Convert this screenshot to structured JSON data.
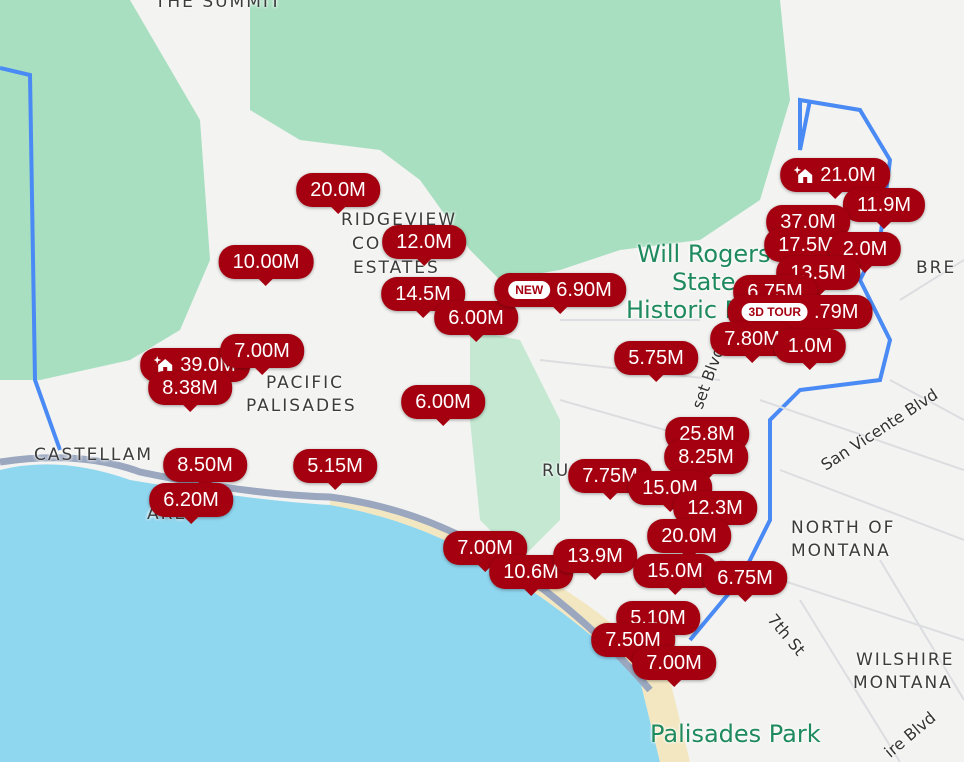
{
  "map": {
    "colors": {
      "water": "#8fd6ef",
      "park": "#a8dfc0",
      "land": "#f3f3f1",
      "boundary": "#4a8af4",
      "marker": "#a50010"
    },
    "place_labels": [
      "THE SUMMIT",
      "RIDGEVIEW",
      "CO",
      "ESTATES",
      "PACIFIC",
      "PALISADES",
      "CASTELLAM",
      "ARE",
      "RU",
      "BRE",
      "NORTH OF",
      "MONTANA",
      "WILSHIRE",
      "MONTANA",
      "PALISADES"
    ],
    "park_labels": [
      "Will Rogers",
      "State",
      "Historic P",
      "Palisades Park"
    ],
    "road_labels": [
      "San Vicente Blvd",
      "set Blvd",
      "7th St",
      "ire Blvd"
    ]
  },
  "markers": [
    {
      "price": "20.0M"
    },
    {
      "price": "10.00M"
    },
    {
      "price": "12.0M"
    },
    {
      "price": "14.5M"
    },
    {
      "price": "6.00M"
    },
    {
      "price": "6.90M",
      "badge": "NEW"
    },
    {
      "price": "39.0M",
      "icon": "new-home-icon"
    },
    {
      "price": "7.00M"
    },
    {
      "price": "8.38M"
    },
    {
      "price": "6.00M"
    },
    {
      "price": "5.75M"
    },
    {
      "price": "8.50M"
    },
    {
      "price": "5.15M"
    },
    {
      "price": "6.20M"
    },
    {
      "price": "21.0M",
      "icon": "new-home-icon"
    },
    {
      "price": "11.9M"
    },
    {
      "price": "37.0M"
    },
    {
      "price": "17.5M"
    },
    {
      "price": "2.0M"
    },
    {
      "price": "13.5M"
    },
    {
      "price": "6.75M"
    },
    {
      "price": ".79M",
      "badge": "3D TOUR"
    },
    {
      "price": "7.80M"
    },
    {
      "price": "1.0M"
    },
    {
      "price": "25.8M"
    },
    {
      "price": "8.25M"
    },
    {
      "price": "7.75M"
    },
    {
      "price": "15.0M"
    },
    {
      "price": "12.3M"
    },
    {
      "price": "20.0M"
    },
    {
      "price": "7.00M"
    },
    {
      "price": "10.6M"
    },
    {
      "price": "13.9M"
    },
    {
      "price": "15.0M"
    },
    {
      "price": "6.75M"
    },
    {
      "price": "5.10M"
    },
    {
      "price": "7.50M"
    },
    {
      "price": "7.00M"
    }
  ]
}
